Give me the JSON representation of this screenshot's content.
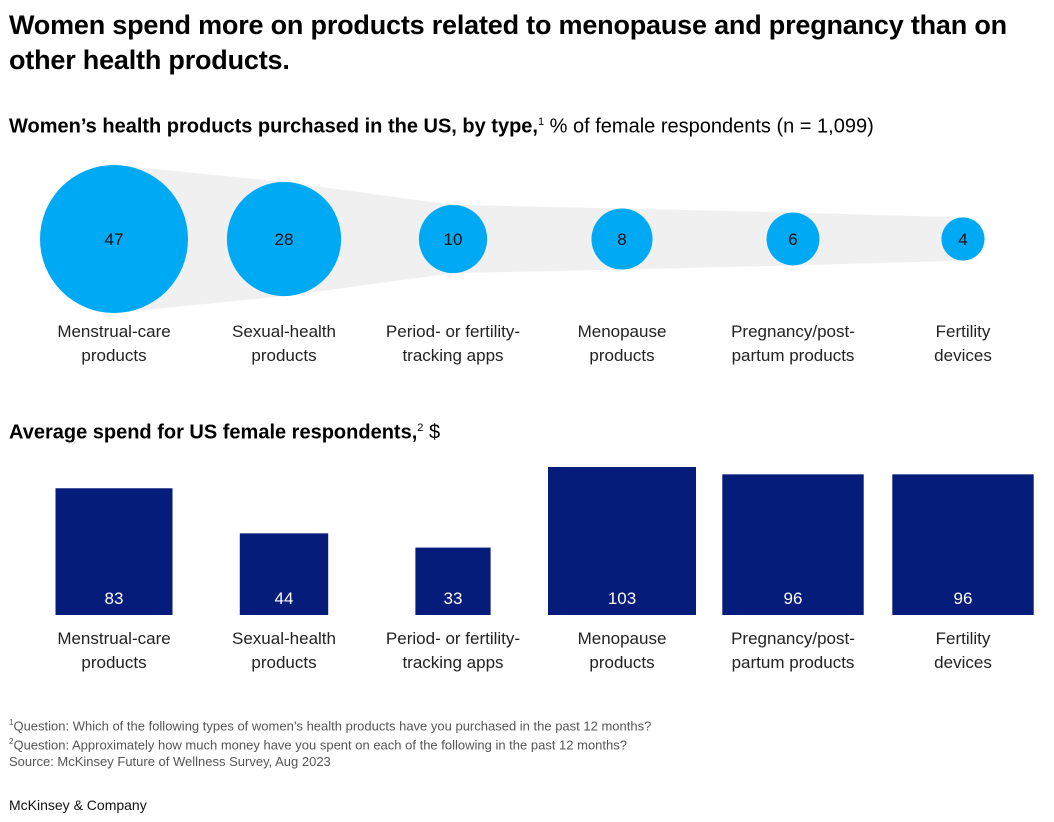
{
  "title": "Women spend more on products related to menopause and pregnancy than on other health products.",
  "chart_data": [
    {
      "type": "bubble",
      "title_bold": "Women’s health products purchased in the US, by type,",
      "title_sup": "1",
      "title_rest": " % of female respondents (n = 1,099)",
      "categories": [
        "Menstrual-care products",
        "Sexual-health products",
        "Period- or fertility-tracking apps",
        "Menopause products",
        "Pregnancy/post-partum products",
        "Fertility devices"
      ],
      "label_lines": [
        [
          "Menstrual-care",
          "products"
        ],
        [
          "Sexual-health",
          "products"
        ],
        [
          "Period- or fertility-",
          "tracking apps"
        ],
        [
          "Menopause",
          "products"
        ],
        [
          "Pregnancy/post-",
          "partum products"
        ],
        [
          "Fertility",
          "devices"
        ]
      ],
      "values": [
        47,
        28,
        10,
        8,
        6,
        4
      ],
      "unit": "%",
      "color": "#00A9F4",
      "band_color": "#F0F0F0"
    },
    {
      "type": "bar",
      "title_bold": "Average spend for US female respondents,",
      "title_sup": "2",
      "title_rest": " $",
      "categories": [
        "Menstrual-care products",
        "Sexual-health products",
        "Period- or fertility-tracking apps",
        "Menopause products",
        "Pregnancy/post-partum products",
        "Fertility devices"
      ],
      "label_lines": [
        [
          "Menstrual-care",
          "products"
        ],
        [
          "Sexual-health",
          "products"
        ],
        [
          "Period- or fertility-",
          "tracking apps"
        ],
        [
          "Menopause",
          "products"
        ],
        [
          "Pregnancy/post-",
          "partum products"
        ],
        [
          "Fertility",
          "devices"
        ]
      ],
      "values": [
        83,
        44,
        33,
        103,
        96,
        96
      ],
      "unit": "$",
      "color": "#051C7A"
    }
  ],
  "footnotes": [
    {
      "sup": "1",
      "text": "Question: Which of the following types of women’s health products have you purchased in the past 12 months?"
    },
    {
      "sup": "2",
      "text": "Question: Approximately how much money have you spent on each of the following in the past 12 months?"
    },
    {
      "sup": "",
      "text": " Source: McKinsey Future of Wellness Survey, Aug 2023"
    }
  ],
  "brand": "McKinsey & Company"
}
